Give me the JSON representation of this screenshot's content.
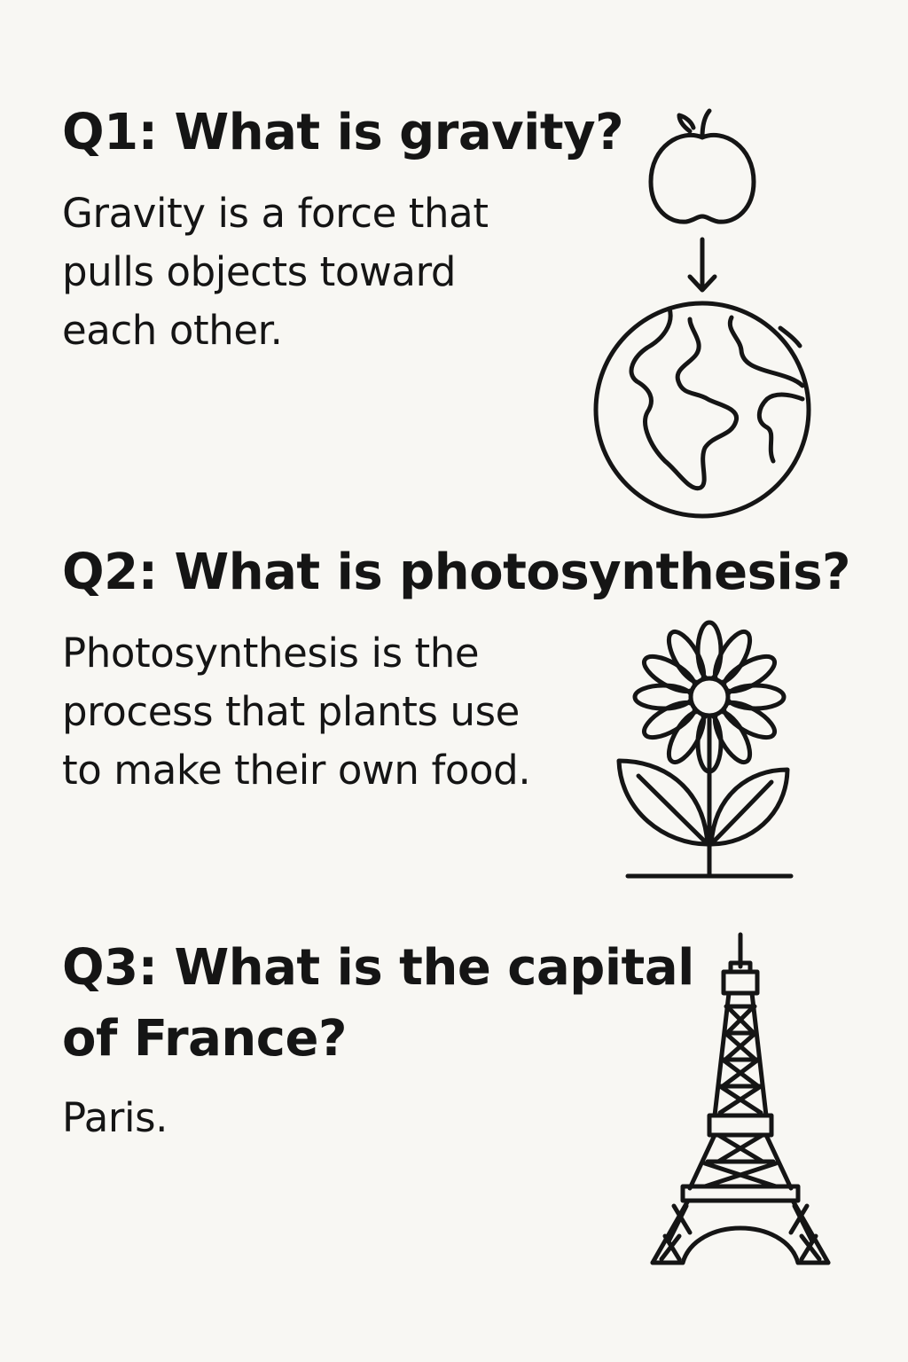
{
  "qa": [
    {
      "question": "Q1: What is gravity?",
      "answer_lines": [
        "Gravity is a force that",
        "pulls objects toward",
        "each other."
      ],
      "icon": "apple-falling-to-earth-icon"
    },
    {
      "question": "Q2: What is photosynthesis?",
      "answer_lines": [
        "Photosynthesis is the",
        "process that plants use",
        "to make their own food."
      ],
      "icon": "flower-plant-icon"
    },
    {
      "question_lines": [
        "Q3: What is the capital",
        "of France?"
      ],
      "answer": "Paris.",
      "icon": "eiffel-tower-icon"
    }
  ],
  "colors": {
    "background": "#f8f7f3",
    "ink": "#151515"
  }
}
